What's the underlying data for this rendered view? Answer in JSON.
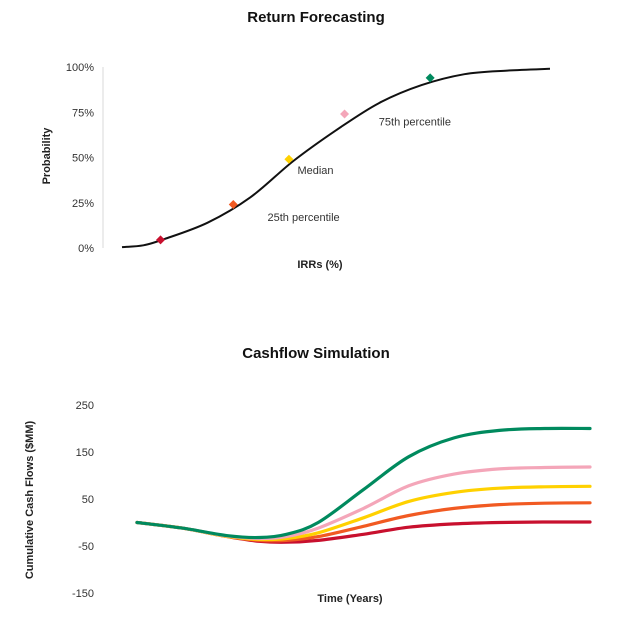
{
  "chart_data": [
    {
      "type": "line",
      "title": "Return Forecasting",
      "xlabel": "IRRs (%)",
      "ylabel": "Probability",
      "ylim": [
        0,
        100
      ],
      "yticks": [
        "100%",
        "75%",
        "50%",
        "25%",
        "0%"
      ],
      "ytick_values": [
        100,
        75,
        50,
        25,
        0
      ],
      "grid": false,
      "series": [
        {
          "color": "#111111",
          "x": [
            0,
            5,
            10,
            20,
            30,
            40,
            50,
            60,
            70,
            80,
            90,
            100
          ],
          "values": [
            0.5,
            1.5,
            5,
            14,
            28,
            48,
            65,
            80,
            90,
            96,
            98,
            99
          ]
        }
      ],
      "markers": [
        {
          "x": 9,
          "y": 4.5,
          "color": "#c8102e"
        },
        {
          "x": 26,
          "y": 24,
          "color": "#f15a22"
        },
        {
          "x": 39,
          "y": 49,
          "color": "#ffd100"
        },
        {
          "x": 52,
          "y": 74,
          "color": "#f4a6b9"
        },
        {
          "x": 72,
          "y": 94,
          "color": "#008a5e"
        }
      ],
      "annotations": [
        {
          "text": "Median",
          "x": 41,
          "y": 43
        },
        {
          "text": "25th percentile",
          "x": 34,
          "y": 17
        },
        {
          "text": "75th percentile",
          "x": 60,
          "y": 70
        }
      ]
    },
    {
      "type": "line",
      "title": "Cashflow Simulation",
      "xlabel": "Time (Years)",
      "ylabel": "Cumulative Cash Flows ($MM)",
      "ylim": [
        -150,
        250
      ],
      "yticks": [
        "250",
        "150",
        "50",
        "-50",
        "-150"
      ],
      "ytick_values": [
        250,
        150,
        50,
        -50,
        -150
      ],
      "grid": false,
      "series": [
        {
          "color": "#c8102e",
          "x": [
            0,
            10,
            20,
            27,
            33,
            40,
            50,
            60,
            70,
            80,
            90,
            100
          ],
          "values": [
            0,
            -12,
            -30,
            -40,
            -42,
            -38,
            -25,
            -10,
            -3,
            0,
            1,
            1
          ]
        },
        {
          "color": "#f15a22",
          "x": [
            0,
            10,
            20,
            27,
            33,
            40,
            50,
            60,
            70,
            80,
            90,
            100
          ],
          "values": [
            0,
            -12,
            -30,
            -38,
            -38,
            -30,
            -8,
            15,
            30,
            38,
            41,
            42
          ]
        },
        {
          "color": "#ffd100",
          "x": [
            0,
            10,
            20,
            27,
            33,
            40,
            50,
            60,
            70,
            80,
            90,
            100
          ],
          "values": [
            0,
            -12,
            -30,
            -36,
            -34,
            -22,
            10,
            45,
            64,
            73,
            76,
            77
          ]
        },
        {
          "color": "#f4a6b9",
          "x": [
            0,
            10,
            20,
            27,
            33,
            40,
            50,
            60,
            70,
            80,
            90,
            100
          ],
          "values": [
            0,
            -12,
            -29,
            -34,
            -30,
            -12,
            30,
            78,
            103,
            114,
            117,
            118
          ]
        },
        {
          "color": "#008a5e",
          "x": [
            0,
            10,
            20,
            27,
            33,
            40,
            50,
            60,
            70,
            80,
            90,
            100
          ],
          "values": [
            0,
            -12,
            -28,
            -32,
            -25,
            0,
            70,
            140,
            180,
            196,
            200,
            200
          ]
        }
      ]
    }
  ]
}
